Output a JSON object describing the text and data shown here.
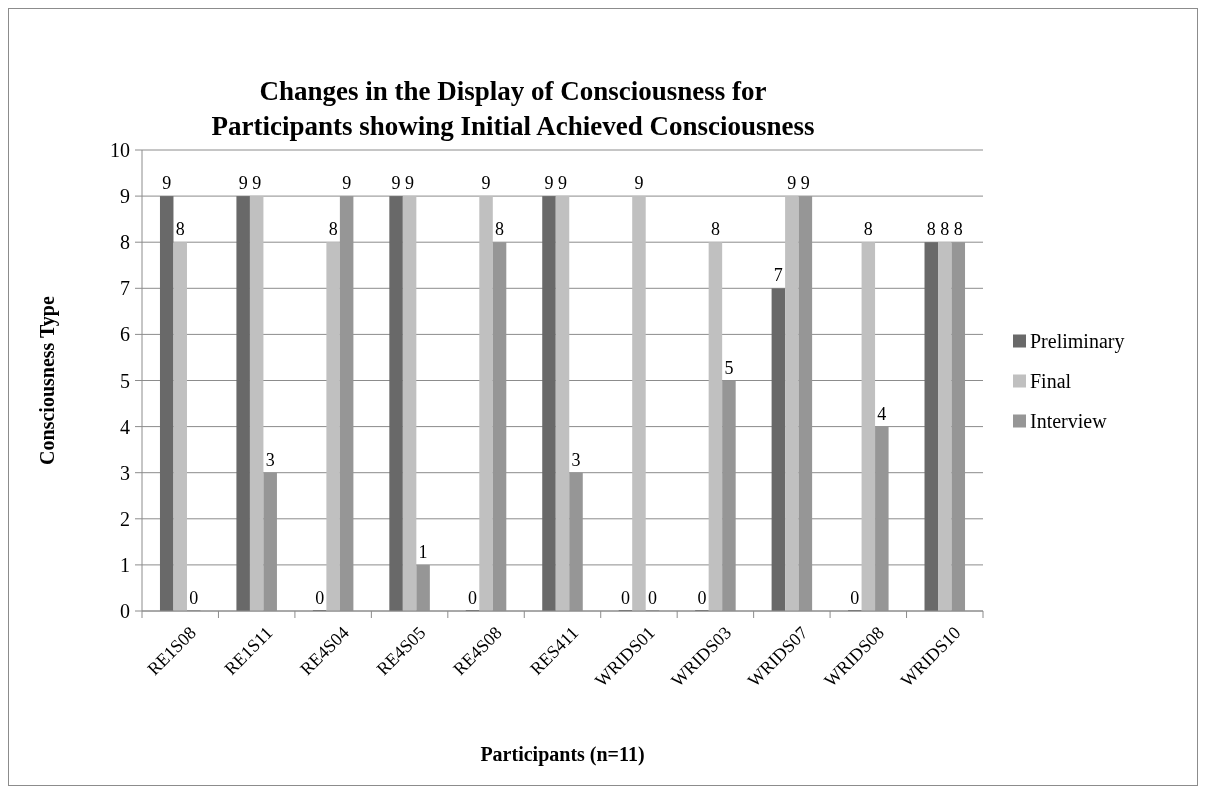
{
  "chart_data": {
    "type": "bar",
    "title": "Changes in the Display of Consciousness for Participants showing Initial Achieved Consciousness",
    "xlabel": "Participants (n=11)",
    "ylabel": "Consciousness Type",
    "categories": [
      "RE1S08",
      "RE1S11",
      "RE4S04",
      "RE4S05",
      "RE4S08",
      "RES411",
      "WRIDS01",
      "WRIDS03",
      "WRIDS07",
      "WRIDS08",
      "WRIDS10"
    ],
    "series": [
      {
        "name": "Preliminary",
        "color": "#696969",
        "values": [
          9,
          9,
          0,
          9,
          0,
          9,
          0,
          0,
          7,
          0,
          8
        ]
      },
      {
        "name": "Final",
        "color": "#c0c0c0",
        "values": [
          8,
          9,
          8,
          9,
          9,
          9,
          9,
          8,
          9,
          8,
          8
        ]
      },
      {
        "name": "Interview",
        "color": "#969696",
        "values": [
          0,
          3,
          9,
          1,
          8,
          3,
          0,
          5,
          9,
          4,
          8
        ]
      }
    ],
    "ylim": [
      0,
      10
    ],
    "yticks": [
      0,
      1,
      2,
      3,
      4,
      5,
      6,
      7,
      8,
      9,
      10
    ],
    "grid": "y",
    "legend": "right",
    "data_labels": true
  }
}
